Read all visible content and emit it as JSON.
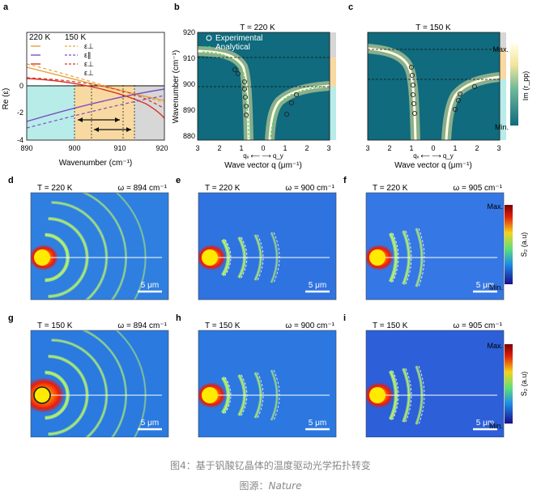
{
  "panel_letters": [
    "a",
    "b",
    "c",
    "d",
    "e",
    "f",
    "g",
    "h",
    "i"
  ],
  "panel_a": {
    "ylabel": "Re (ε)",
    "xlabel": "Wavenumber  (cm⁻¹)",
    "legend_t1": "220 K",
    "legend_t2": "150 K",
    "legend_items": [
      "ε⊥",
      "ε∥",
      "ε⊥",
      "ε⊥"
    ],
    "x_ticks": [
      "890",
      "900",
      "910",
      "920"
    ],
    "y_ticks": [
      "0",
      "-2",
      "-4"
    ],
    "colors": {
      "orange": "#e8a33c",
      "purple": "#7b4fc4",
      "red": "#d8352a",
      "yellow_fill": "#f8d9a2",
      "cyan_fill": "#b8ece8",
      "gray_fill": "#d7d7d7"
    }
  },
  "panel_b": {
    "title": "T = 220 K",
    "ylabel": "Wavenumber  (cm⁻¹)",
    "xlabel": "Wave vector q  (μm⁻¹)",
    "x_ticks": [
      "3",
      "2",
      "1",
      "0",
      "1",
      "2",
      "3"
    ],
    "y_ticks": [
      "920",
      "910",
      "900",
      "890",
      "880"
    ],
    "legend": [
      "Experimental",
      "Analytical"
    ],
    "axis_arrow": "qₓ ⟵ ⟶ q_y"
  },
  "panel_c": {
    "title": "T = 150 K",
    "xlabel": "Wave vector q  (μm⁻¹)",
    "x_ticks": [
      "3",
      "2",
      "1",
      "0",
      "1",
      "2",
      "3"
    ],
    "colorbar_max": "Max.",
    "colorbar_min": "Min.",
    "colorbar_label": "Im (r_pp)",
    "axis_arrow": "qₓ ⟵ ⟶ q_y"
  },
  "maps": [
    {
      "letter": "d",
      "temp": "T = 220 K",
      "omega": "ω = 894 cm⁻¹",
      "scale": "5 μm",
      "bg": "#2f7fe0"
    },
    {
      "letter": "e",
      "temp": "T = 220 K",
      "omega": "ω = 900 cm⁻¹",
      "scale": "5 μm",
      "bg": "#2f73e0"
    },
    {
      "letter": "f",
      "temp": "T = 220 K",
      "omega": "ω = 905 cm⁻¹",
      "scale": "5 μm",
      "bg": "#3577e4"
    },
    {
      "letter": "g",
      "temp": "T = 150 K",
      "omega": "ω = 894 cm⁻¹",
      "scale": "5 μm",
      "bg": "#2a7ae0"
    },
    {
      "letter": "h",
      "temp": "T = 150 K",
      "omega": "ω = 900 cm⁻¹",
      "scale": "5 μm",
      "bg": "#2c78e0"
    },
    {
      "letter": "i",
      "temp": "T = 150 K",
      "omega": "ω = 905 cm⁻¹",
      "scale": "5 μm",
      "bg": "#2c5fd8"
    }
  ],
  "colorbar_right": {
    "max": "Max.",
    "min": "Min.",
    "label": "S₂ (a.u)"
  },
  "caption": "图4：基于钒酸钇晶体的温度驱动光学拓扑转变",
  "source_prefix": "图源：",
  "source_name": "Nature"
}
